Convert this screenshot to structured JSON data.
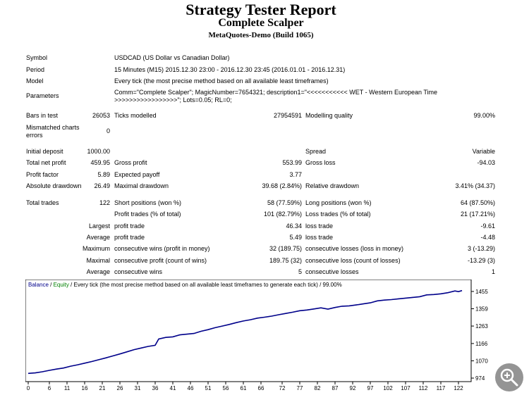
{
  "header": {
    "title": "Strategy Tester Report",
    "ea_name": "Complete Scalper",
    "server": "MetaQuotes-Demo (Build 1065)"
  },
  "info": {
    "symbol_label": "Symbol",
    "symbol_value": "USDCAD (US Dollar vs Canadian Dollar)",
    "period_label": "Period",
    "period_value": "15 Minutes (M15) 2015.12.30 23:00 - 2016.12.30 23:45 (2016.01.01 - 2016.12.31)",
    "model_label": "Model",
    "model_value": "Every tick (the most precise method based on all available least timeframes)",
    "parameters_label": "Parameters",
    "parameters_value": "Comm=\"Complete Scalper\"; MagicNumber=7654321; description1=\"<<<<<<<<<<< WET - Western European Time >>>>>>>>>>>>>>>>>\"; Lots=0.05; RL=0;"
  },
  "stats": {
    "bars_label": "Bars in test",
    "bars_value": "26053",
    "ticks_label": "Ticks modelled",
    "ticks_value": "27954591",
    "quality_label": "Modelling quality",
    "quality_value": "99.00%",
    "mismatch_label": "Mismatched charts errors",
    "mismatch_value": "0",
    "deposit_label": "Initial deposit",
    "deposit_value": "1000.00",
    "spread_label": "Spread",
    "spread_value": "Variable",
    "net_profit_label": "Total net profit",
    "net_profit_value": "459.95",
    "gross_profit_label": "Gross profit",
    "gross_profit_value": "553.99",
    "gross_loss_label": "Gross loss",
    "gross_loss_value": "-94.03",
    "profit_factor_label": "Profit factor",
    "profit_factor_value": "5.89",
    "expected_payoff_label": "Expected payoff",
    "expected_payoff_value": "3.77",
    "abs_dd_label": "Absolute drawdown",
    "abs_dd_value": "26.49",
    "max_dd_label": "Maximal drawdown",
    "max_dd_value": "39.68 (2.84%)",
    "rel_dd_label": "Relative drawdown",
    "rel_dd_value": "3.41% (34.37)",
    "trades_label": "Total trades",
    "trades_value": "122",
    "short_label": "Short positions (won %)",
    "short_value": "58 (77.59%)",
    "long_label": "Long positions (won %)",
    "long_value": "64 (87.50%)",
    "profit_trades_label": "Profit trades (% of total)",
    "profit_trades_value": "101 (82.79%)",
    "loss_trades_label": "Loss trades (% of total)",
    "loss_trades_value": "21 (17.21%)",
    "largest_label": "Largest",
    "largest_profit_label": "profit trade",
    "largest_profit_value": "46.34",
    "largest_loss_label": "loss trade",
    "largest_loss_value": "-9.61",
    "average_label": "Average",
    "average_profit_label": "profit trade",
    "average_profit_value": "5.49",
    "average_loss_label": "loss trade",
    "average_loss_value": "-4.48",
    "maximum_label": "Maximum",
    "max_cons_wins_label": "consecutive wins (profit in money)",
    "max_cons_wins_value": "32 (189.75)",
    "max_cons_losses_label": "consecutive losses (loss in money)",
    "max_cons_losses_value": "3 (-13.29)",
    "maximal_label": "Maximal",
    "maximal_profit_label": "consecutive profit (count of wins)",
    "maximal_profit_value": "189.75 (32)",
    "maximal_loss_label": "consecutive loss (count of losses)",
    "maximal_loss_value": "-13.29 (3)",
    "average2_label": "Average",
    "avg_cons_wins_label": "consecutive wins",
    "avg_cons_wins_value": "5",
    "avg_cons_losses_label": "consecutive losses",
    "avg_cons_losses_value": "1"
  },
  "chart_data": {
    "type": "line",
    "legend": {
      "balance": "Balance",
      "sep": " / ",
      "equity": "Equity",
      "rest": " / Every tick (the most precise method based on all available least timeframes to generate each tick) / 99.00%"
    },
    "balance_color": "#00008b",
    "equity_color": "#008000",
    "legend_balance_color": "#00008b",
    "xlim": [
      0,
      124
    ],
    "ylim": [
      974,
      1490
    ],
    "x_ticks": [
      "0",
      "6",
      "11",
      "16",
      "21",
      "26",
      "31",
      "36",
      "41",
      "46",
      "51",
      "56",
      "61",
      "66",
      "72",
      "77",
      "82",
      "87",
      "92",
      "97",
      "102",
      "107",
      "112",
      "117",
      "122"
    ],
    "y_ticks": [
      "1455",
      "1359",
      "1263",
      "1166",
      "1070",
      "974"
    ],
    "series": [
      {
        "x": [
          0,
          2,
          4,
          6,
          8,
          10,
          12,
          14,
          16,
          18,
          20,
          22,
          24,
          26,
          28,
          30,
          32,
          34,
          36,
          37,
          39,
          41,
          43,
          45,
          47,
          49,
          51,
          53,
          55,
          57,
          59,
          61,
          63,
          65,
          67,
          69,
          71,
          73,
          75,
          77,
          79,
          81,
          83,
          85,
          87,
          89,
          91,
          93,
          95,
          97,
          99,
          101,
          103,
          105,
          107,
          109,
          111,
          113,
          115,
          117,
          119,
          121,
          122,
          123
        ],
        "values": [
          1000,
          1003,
          1009,
          1017,
          1024,
          1030,
          1040,
          1048,
          1057,
          1066,
          1076,
          1086,
          1097,
          1108,
          1120,
          1132,
          1141,
          1150,
          1156,
          1191,
          1200,
          1203,
          1214,
          1218,
          1222,
          1234,
          1243,
          1254,
          1263,
          1272,
          1282,
          1291,
          1298,
          1307,
          1312,
          1318,
          1326,
          1333,
          1340,
          1348,
          1352,
          1358,
          1364,
          1357,
          1366,
          1373,
          1375,
          1380,
          1386,
          1392,
          1403,
          1407,
          1410,
          1414,
          1418,
          1422,
          1426,
          1436,
          1438,
          1442,
          1448,
          1458,
          1454,
          1460
        ]
      }
    ]
  }
}
